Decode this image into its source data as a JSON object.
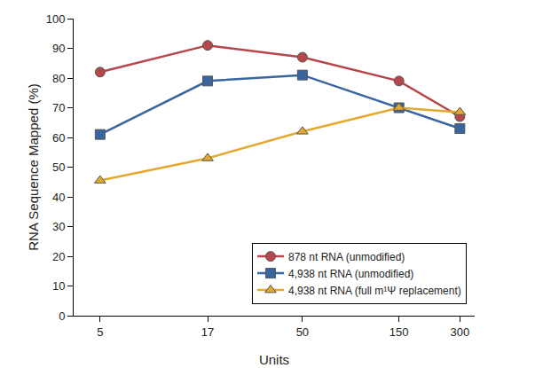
{
  "chart_data": {
    "type": "line",
    "x_label": "Units",
    "y_label": "RNA Sequence Mapped (%)",
    "x": [
      5,
      17,
      50,
      150,
      300
    ],
    "log": "x",
    "xlim": [
      3.7,
      355
    ],
    "xticks": [
      5,
      17,
      50,
      150,
      300
    ],
    "ylim": [
      0,
      100
    ],
    "yticks": [
      0,
      10,
      20,
      30,
      40,
      50,
      60,
      70,
      80,
      90,
      100
    ],
    "grid": false,
    "legend": "lower right",
    "series": [
      {
        "name": "878 nt RNA (unmodified)",
        "color": "#b5474a",
        "marker": "circle",
        "line_style": "solid",
        "values": [
          82,
          91,
          87,
          79,
          67
        ]
      },
      {
        "name": "4,938 nt RNA (unmodified)",
        "color": "#3a66a0",
        "marker": "square",
        "line_style": "solid",
        "values": [
          61,
          79,
          81,
          70,
          63
        ]
      },
      {
        "name": "4,938 nt RNA (full m¹Ψ replacement)",
        "color": "#e3a92e",
        "marker": "triangle-up",
        "line_style": "solid",
        "values": [
          45.5,
          53,
          62,
          70,
          68.5
        ]
      }
    ]
  }
}
